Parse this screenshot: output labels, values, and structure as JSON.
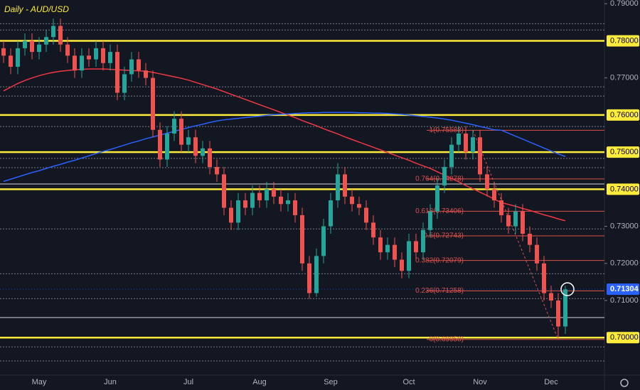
{
  "chart_data": {
    "type": "candlestick",
    "title": "Daily - AUD/USD",
    "categories": [
      null,
      null,
      null,
      null,
      null,
      "May",
      null,
      null,
      null,
      null,
      null,
      null,
      null,
      null,
      null,
      "Jun",
      null,
      null,
      null,
      null,
      null,
      null,
      null,
      null,
      null,
      null,
      "Jul",
      null,
      null,
      null,
      null,
      null,
      null,
      null,
      null,
      null,
      "Aug",
      null,
      null,
      null,
      null,
      null,
      null,
      null,
      null,
      null,
      "Sep",
      null,
      null,
      null,
      null,
      null,
      null,
      null,
      null,
      null,
      null,
      "Oct",
      null,
      null,
      null,
      null,
      null,
      null,
      null,
      null,
      null,
      "Nov",
      null,
      null,
      null,
      null,
      null,
      null,
      null,
      null,
      null,
      "Dec",
      null,
      null
    ],
    "open": [
      0.778,
      0.776,
      0.773,
      0.778,
      0.78,
      0.777,
      0.779,
      0.781,
      0.784,
      0.779,
      0.776,
      0.772,
      0.776,
      0.775,
      0.778,
      0.774,
      0.777,
      0.766,
      0.771,
      0.775,
      0.772,
      0.77,
      0.756,
      0.748,
      0.755,
      0.759,
      0.752,
      0.754,
      0.749,
      0.751,
      0.746,
      0.744,
      0.735,
      0.731,
      0.737,
      0.735,
      0.739,
      0.737,
      0.74,
      0.738,
      0.736,
      0.737,
      0.733,
      0.72,
      0.712,
      0.722,
      0.73,
      0.737,
      0.744,
      0.738,
      0.736,
      0.735,
      0.731,
      0.727,
      0.723,
      0.725,
      0.721,
      0.718,
      0.726,
      0.723,
      0.729,
      0.734,
      0.741,
      0.746,
      0.752,
      0.755,
      0.75,
      0.754,
      0.744,
      0.74,
      0.737,
      0.733,
      0.73,
      0.734,
      0.728,
      0.725,
      0.72,
      0.712,
      0.71,
      0.703
    ],
    "high": [
      0.78,
      0.778,
      0.78,
      0.782,
      0.782,
      0.781,
      0.783,
      0.786,
      0.786,
      0.781,
      0.778,
      0.778,
      0.778,
      0.78,
      0.78,
      0.779,
      0.779,
      0.773,
      0.777,
      0.777,
      0.774,
      0.772,
      0.758,
      0.757,
      0.761,
      0.761,
      0.756,
      0.756,
      0.753,
      0.753,
      0.748,
      0.746,
      0.737,
      0.739,
      0.739,
      0.741,
      0.741,
      0.742,
      0.742,
      0.74,
      0.739,
      0.739,
      0.735,
      0.722,
      0.724,
      0.732,
      0.739,
      0.747,
      0.746,
      0.74,
      0.738,
      0.737,
      0.733,
      0.729,
      0.727,
      0.727,
      0.723,
      0.728,
      0.728,
      0.731,
      0.736,
      0.743,
      0.748,
      0.754,
      0.757,
      0.757,
      0.756,
      0.756,
      0.746,
      0.742,
      0.739,
      0.735,
      0.736,
      0.736,
      0.73,
      0.727,
      0.722,
      0.714,
      0.712,
      0.714
    ],
    "low": [
      0.774,
      0.771,
      0.771,
      0.776,
      0.775,
      0.775,
      0.777,
      0.779,
      0.777,
      0.774,
      0.77,
      0.77,
      0.773,
      0.773,
      0.772,
      0.772,
      0.764,
      0.764,
      0.769,
      0.77,
      0.768,
      0.754,
      0.746,
      0.746,
      0.753,
      0.75,
      0.75,
      0.747,
      0.747,
      0.744,
      0.742,
      0.733,
      0.729,
      0.729,
      0.733,
      0.733,
      0.735,
      0.735,
      0.736,
      0.734,
      0.734,
      0.731,
      0.718,
      0.7105,
      0.711,
      0.72,
      0.728,
      0.735,
      0.736,
      0.734,
      0.733,
      0.729,
      0.725,
      0.721,
      0.721,
      0.719,
      0.716,
      0.716,
      0.721,
      0.721,
      0.727,
      0.732,
      0.739,
      0.744,
      0.75,
      0.748,
      0.748,
      0.742,
      0.738,
      0.735,
      0.731,
      0.728,
      0.728,
      0.726,
      0.723,
      0.718,
      0.71,
      0.708,
      0.6995,
      0.701
    ],
    "close": [
      0.776,
      0.773,
      0.778,
      0.78,
      0.777,
      0.779,
      0.781,
      0.784,
      0.779,
      0.776,
      0.772,
      0.776,
      0.775,
      0.778,
      0.774,
      0.777,
      0.766,
      0.771,
      0.775,
      0.772,
      0.77,
      0.756,
      0.748,
      0.755,
      0.759,
      0.752,
      0.754,
      0.749,
      0.751,
      0.746,
      0.744,
      0.735,
      0.731,
      0.737,
      0.735,
      0.739,
      0.737,
      0.74,
      0.738,
      0.736,
      0.737,
      0.733,
      0.72,
      0.712,
      0.722,
      0.73,
      0.737,
      0.744,
      0.738,
      0.736,
      0.735,
      0.731,
      0.727,
      0.723,
      0.725,
      0.721,
      0.718,
      0.726,
      0.723,
      0.729,
      0.734,
      0.741,
      0.746,
      0.752,
      0.755,
      0.75,
      0.754,
      0.744,
      0.74,
      0.737,
      0.733,
      0.73,
      0.734,
      0.728,
      0.725,
      0.72,
      0.712,
      0.71,
      0.703,
      0.713
    ],
    "up_color": "#26a69a",
    "down_color": "#ef5350",
    "series": [
      {
        "color": "#f23645",
        "values": [
          0.7665,
          0.7675,
          0.7685,
          0.7693,
          0.77,
          0.7706,
          0.7711,
          0.7715,
          0.7718,
          0.772,
          0.7722,
          0.7723,
          0.7724,
          0.7724,
          0.7724,
          0.7723,
          0.7722,
          0.7721,
          0.772,
          0.7719,
          0.7718,
          0.7715,
          0.7711,
          0.7707,
          0.7703,
          0.7699,
          0.7694,
          0.7688,
          0.7682,
          0.7676,
          0.767,
          0.7663,
          0.7656,
          0.7649,
          0.7642,
          0.7635,
          0.7628,
          0.7621,
          0.7614,
          0.7607,
          0.76,
          0.7593,
          0.7585,
          0.7578,
          0.7571,
          0.7563,
          0.7556,
          0.7549,
          0.7541,
          0.7534,
          0.7527,
          0.752,
          0.7513,
          0.7506,
          0.7499,
          0.7492,
          0.7485,
          0.7478,
          0.747,
          0.7463,
          0.7456,
          0.7447,
          0.7438,
          0.7429,
          0.742,
          0.741,
          0.7401,
          0.7392,
          0.7383,
          0.7373,
          0.7364,
          0.7359,
          0.7354,
          0.7348,
          0.7343,
          0.7337,
          0.7331,
          0.7326,
          0.732,
          0.7315
        ]
      },
      {
        "color": "#2962ff",
        "values": [
          0.7421,
          0.7427,
          0.7433,
          0.7439,
          0.7445,
          0.745,
          0.7456,
          0.7462,
          0.7467,
          0.7473,
          0.7478,
          0.7484,
          0.749,
          0.7496,
          0.7502,
          0.7507,
          0.7513,
          0.7519,
          0.7525,
          0.753,
          0.7536,
          0.7541,
          0.7546,
          0.7551,
          0.7556,
          0.7561,
          0.7566,
          0.7571,
          0.7575,
          0.758,
          0.7584,
          0.7587,
          0.7589,
          0.7591,
          0.7593,
          0.7595,
          0.7597,
          0.7599,
          0.7601,
          0.7602,
          0.7603,
          0.7604,
          0.7605,
          0.7606,
          0.7606,
          0.7607,
          0.7607,
          0.7607,
          0.7607,
          0.7607,
          0.7606,
          0.7606,
          0.7605,
          0.7605,
          0.7604,
          0.7603,
          0.7602,
          0.76,
          0.7598,
          0.7596,
          0.7594,
          0.7592,
          0.7589,
          0.7586,
          0.7582,
          0.7578,
          0.7574,
          0.7569,
          0.7565,
          0.756,
          0.7559,
          0.7551,
          0.7543,
          0.7535,
          0.7527,
          0.7519,
          0.7511,
          0.7503,
          0.7495,
          0.7488
        ]
      }
    ],
    "ylim": [
      0.6899,
      0.791
    ],
    "yticks": [
      {
        "value": 0.79,
        "label": "0.79000"
      },
      {
        "value": 0.78,
        "label": "0.78000"
      },
      {
        "value": 0.77,
        "label": "0.77000"
      },
      {
        "value": 0.76,
        "label": "0.76000"
      },
      {
        "value": 0.75,
        "label": "0.75000"
      },
      {
        "value": 0.74,
        "label": "0.74000"
      },
      {
        "value": 0.73,
        "label": "0.73000"
      },
      {
        "value": 0.72,
        "label": "0.72000"
      },
      {
        "value": 0.71,
        "label": "0.71000"
      },
      {
        "value": 0.7,
        "label": "0.70000"
      }
    ],
    "levels": [
      0.78,
      0.76,
      0.75,
      0.74,
      0.7
    ],
    "level_color": "#ffeb3b",
    "dotted_levels": [
      0.7846,
      0.7829,
      0.7676,
      0.7651,
      0.7569,
      0.7483,
      0.7458,
      0.7293,
      0.7172,
      0.7105,
      0.6975,
      0.6937
    ],
    "support_lines": [
      0.7414,
      0.7054
    ],
    "fib_levels": [
      {
        "value": 0.75588,
        "label": "1(0.75588)"
      },
      {
        "value": 0.74278,
        "label": "0.764(0.74278)"
      },
      {
        "value": 0.73406,
        "label": "0.618(0.73406)"
      },
      {
        "value": 0.72743,
        "label": "0.5(0.72743)"
      },
      {
        "value": 0.72079,
        "label": "0.382(0.72079)"
      },
      {
        "value": 0.71258,
        "label": "0.236(0.71258)"
      },
      {
        "value": 0.6995,
        "label": "0(0.69950)"
      }
    ],
    "fib_color": "#e0504a",
    "last_price": {
      "value": 0.71304,
      "label": "0.71304"
    },
    "last_price_color": "#2962ff"
  }
}
